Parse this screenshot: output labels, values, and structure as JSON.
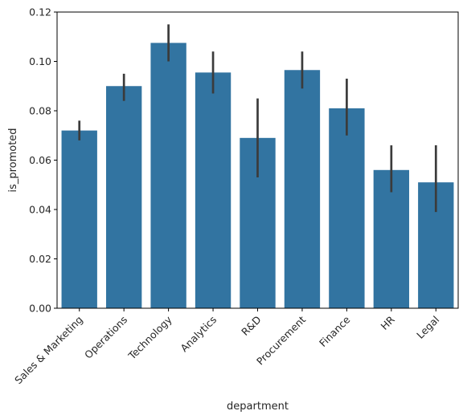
{
  "chart_data": {
    "type": "bar",
    "title": "",
    "xlabel": "department",
    "ylabel": "is_promoted",
    "categories": [
      "Sales & Marketing",
      "Operations",
      "Technology",
      "Analytics",
      "R&D",
      "Procurement",
      "Finance",
      "HR",
      "Legal"
    ],
    "values": [
      0.072,
      0.09,
      0.1075,
      0.0955,
      0.069,
      0.0965,
      0.081,
      0.056,
      0.051
    ],
    "error_low": [
      0.068,
      0.084,
      0.1,
      0.087,
      0.053,
      0.089,
      0.07,
      0.047,
      0.039
    ],
    "error_high": [
      0.076,
      0.095,
      0.115,
      0.104,
      0.085,
      0.104,
      0.093,
      0.066,
      0.066
    ],
    "ylim": [
      0,
      0.12
    ],
    "yticks": [
      "0.00",
      "0.02",
      "0.04",
      "0.06",
      "0.08",
      "0.10",
      "0.12"
    ],
    "bar_color": "#3274a1",
    "error_color": "#3b3b3b",
    "grid": false,
    "legend": "none"
  }
}
